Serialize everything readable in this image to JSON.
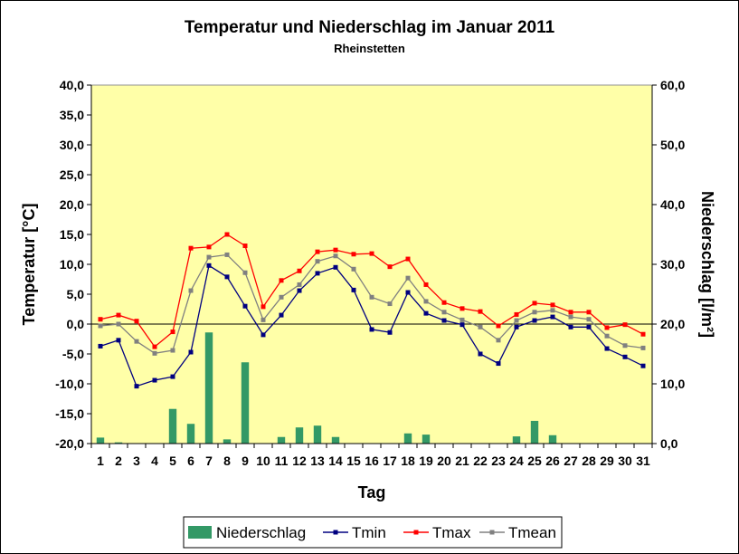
{
  "chart_data": {
    "type": "bar+line",
    "title": "Temperatur und Niederschlag im Januar 2011",
    "subtitle": "Rheinstetten",
    "xlabel": "Tag",
    "ylabel_left": "Temperatur [°C]",
    "ylabel_right": "Niederschlag [l/m²]",
    "ylim_left": [
      -20,
      40
    ],
    "ylim_right": [
      0,
      60
    ],
    "yticks_left": [
      "-20,0",
      "-15,0",
      "-10,0",
      "-5,0",
      "0,0",
      "5,0",
      "10,0",
      "15,0",
      "20,0",
      "25,0",
      "30,0",
      "35,0",
      "40,0"
    ],
    "yticks_right": [
      "0,0",
      "10,0",
      "20,0",
      "30,0",
      "40,0",
      "50,0",
      "60,0"
    ],
    "categories": [
      "1",
      "2",
      "3",
      "4",
      "5",
      "6",
      "7",
      "8",
      "9",
      "10",
      "11",
      "12",
      "13",
      "14",
      "15",
      "16",
      "17",
      "18",
      "19",
      "20",
      "21",
      "22",
      "23",
      "24",
      "25",
      "26",
      "27",
      "28",
      "29",
      "30",
      "31"
    ],
    "legend_position": "bottom",
    "series": [
      {
        "name": "Niederschlag",
        "type": "bar",
        "axis": "right",
        "color": "#339966",
        "values": [
          1.0,
          0.2,
          0,
          0,
          5.8,
          3.3,
          18.6,
          0.7,
          13.6,
          0,
          1.1,
          2.7,
          3.0,
          1.1,
          0,
          0,
          0,
          1.7,
          1.5,
          0,
          0,
          0,
          0,
          1.2,
          3.8,
          1.4,
          0,
          0,
          0,
          0,
          0
        ]
      },
      {
        "name": "Tmin",
        "type": "line",
        "axis": "left",
        "color": "#000080",
        "values": [
          -3.7,
          -2.7,
          -10.4,
          -9.4,
          -8.8,
          -4.7,
          9.8,
          7.9,
          3.0,
          -1.8,
          1.5,
          5.6,
          8.5,
          9.5,
          5.7,
          -0.9,
          -1.4,
          5.3,
          1.8,
          0.6,
          -0.1,
          -5.0,
          -6.6,
          -0.5,
          0.6,
          1.2,
          -0.5,
          -0.5,
          -4.1,
          -5.5,
          -7.0
        ]
      },
      {
        "name": "Tmax",
        "type": "line",
        "axis": "left",
        "color": "#ff0000",
        "values": [
          0.8,
          1.5,
          0.5,
          -3.8,
          -1.3,
          12.7,
          12.9,
          15.0,
          13.1,
          2.9,
          7.3,
          8.9,
          12.1,
          12.4,
          11.7,
          11.8,
          9.6,
          10.9,
          6.6,
          3.6,
          2.6,
          2.1,
          -0.3,
          1.6,
          3.5,
          3.2,
          2.0,
          2.0,
          -0.6,
          -0.1,
          -1.7
        ]
      },
      {
        "name": "Tmean",
        "type": "line",
        "axis": "left",
        "color": "#808080",
        "values": [
          -0.3,
          0.0,
          -2.9,
          -4.9,
          -4.4,
          5.6,
          11.2,
          11.6,
          8.6,
          0.7,
          4.5,
          6.6,
          10.5,
          11.4,
          9.2,
          4.5,
          3.4,
          7.7,
          3.8,
          2.0,
          0.7,
          -0.5,
          -2.7,
          0.6,
          2.0,
          2.3,
          1.2,
          0.8,
          -2.0,
          -3.6,
          -4.0
        ]
      }
    ]
  }
}
